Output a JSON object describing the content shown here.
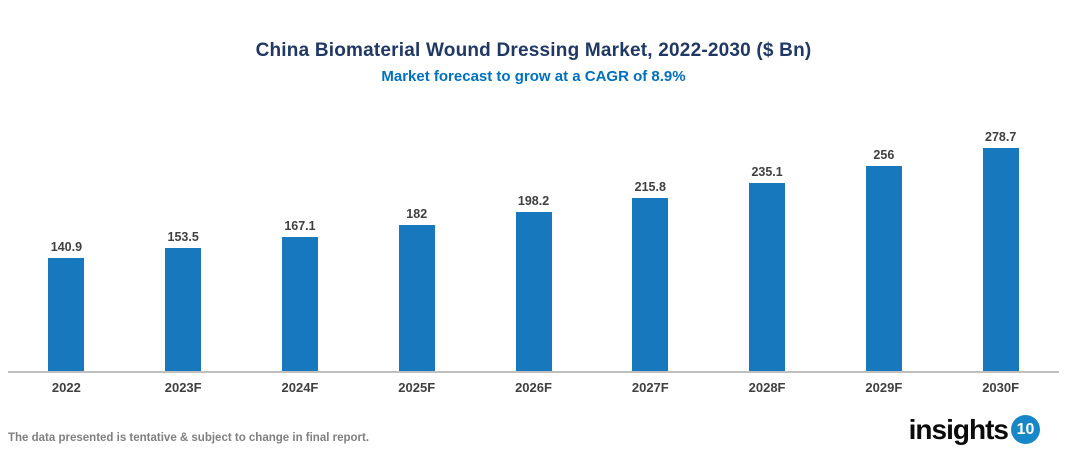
{
  "chart": {
    "title": "China Biomaterial Wound Dressing Market, 2022-2030 ($ Bn)",
    "subtitle": "Market forecast to grow at a CAGR of 8.9%"
  },
  "chart_data": {
    "type": "bar",
    "categories": [
      "2022",
      "2023F",
      "2024F",
      "2025F",
      "2026F",
      "2027F",
      "2028F",
      "2029F",
      "2030F"
    ],
    "values": [
      140.9,
      153.5,
      167.1,
      182,
      198.2,
      215.8,
      235.1,
      256,
      278.7
    ],
    "value_labels": [
      "140.9",
      "153.5",
      "167.1",
      "182",
      "198.2",
      "215.8",
      "235.1",
      "256",
      "278.7"
    ],
    "title": "China Biomaterial Wound Dressing Market, 2022-2030 ($ Bn)",
    "subtitle": "Market forecast to grow at a CAGR of 8.9%",
    "xlabel": "",
    "ylabel": "",
    "ylim": [
      0,
      280
    ],
    "grid": false,
    "legend": false,
    "data_labels_shown": true,
    "bar_color": "#1878BE"
  },
  "footer": {
    "disclaimer": "The data presented is tentative & subject to change in final report.",
    "logo_text": "insights",
    "logo_number": "10"
  },
  "colors": {
    "bar": "#1878BE",
    "title": "#1F3864",
    "subtitle": "#0070C0",
    "value_label": "#404040",
    "axis_line": "#BFBFBF",
    "footer_text": "#808080",
    "logo_circle": "#1787C8"
  }
}
